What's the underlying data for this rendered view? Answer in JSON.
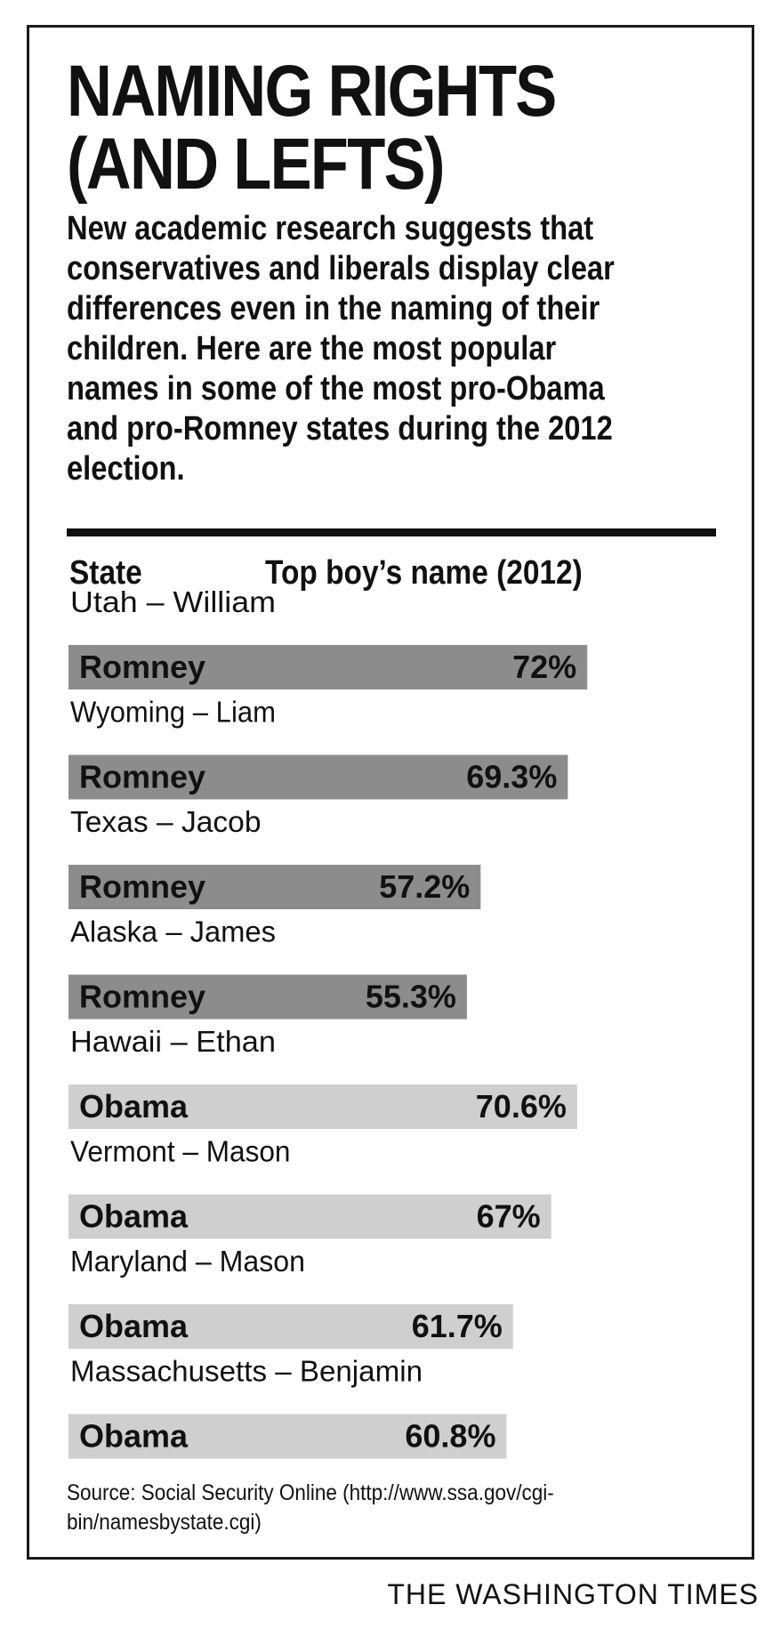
{
  "title": "NAMING RIGHTS\n(AND LEFTS)",
  "subtitle": "New academic research suggests that conservatives and liberals display clear differences even in the naming of their children. Here are the most popular names in some of the most pro-Obama and pro-Romney states during the 2012 election.",
  "columns": {
    "state": "State",
    "name": "Top boy’s name (2012)"
  },
  "source": "Source: Social Security Online (http://www.ssa.gov/cgi-bin/namesbystate.cgi)",
  "credit": "THE WASHINGTON TIMES",
  "colors": {
    "romney": "#8c8c8c",
    "obama": "#cfcfcf"
  },
  "chart_data": {
    "type": "bar",
    "orientation": "horizontal",
    "unit": "%",
    "categories": [
      "Utah – William",
      "Wyoming – Liam",
      "Texas – Jacob",
      "Alaska – James",
      "Hawaii – Ethan",
      "Vermont – Mason",
      "Maryland – Mason",
      "Massachusetts – Benjamin"
    ],
    "candidates": [
      "Romney",
      "Romney",
      "Romney",
      "Romney",
      "Obama",
      "Obama",
      "Obama",
      "Obama"
    ],
    "values": [
      72,
      69.3,
      57.2,
      55.3,
      70.6,
      67,
      61.7,
      60.8
    ],
    "value_labels": [
      "72%",
      "69.3%",
      "57.2%",
      "55.3%",
      "70.6%",
      "67%",
      "61.7%",
      "60.8%"
    ]
  }
}
